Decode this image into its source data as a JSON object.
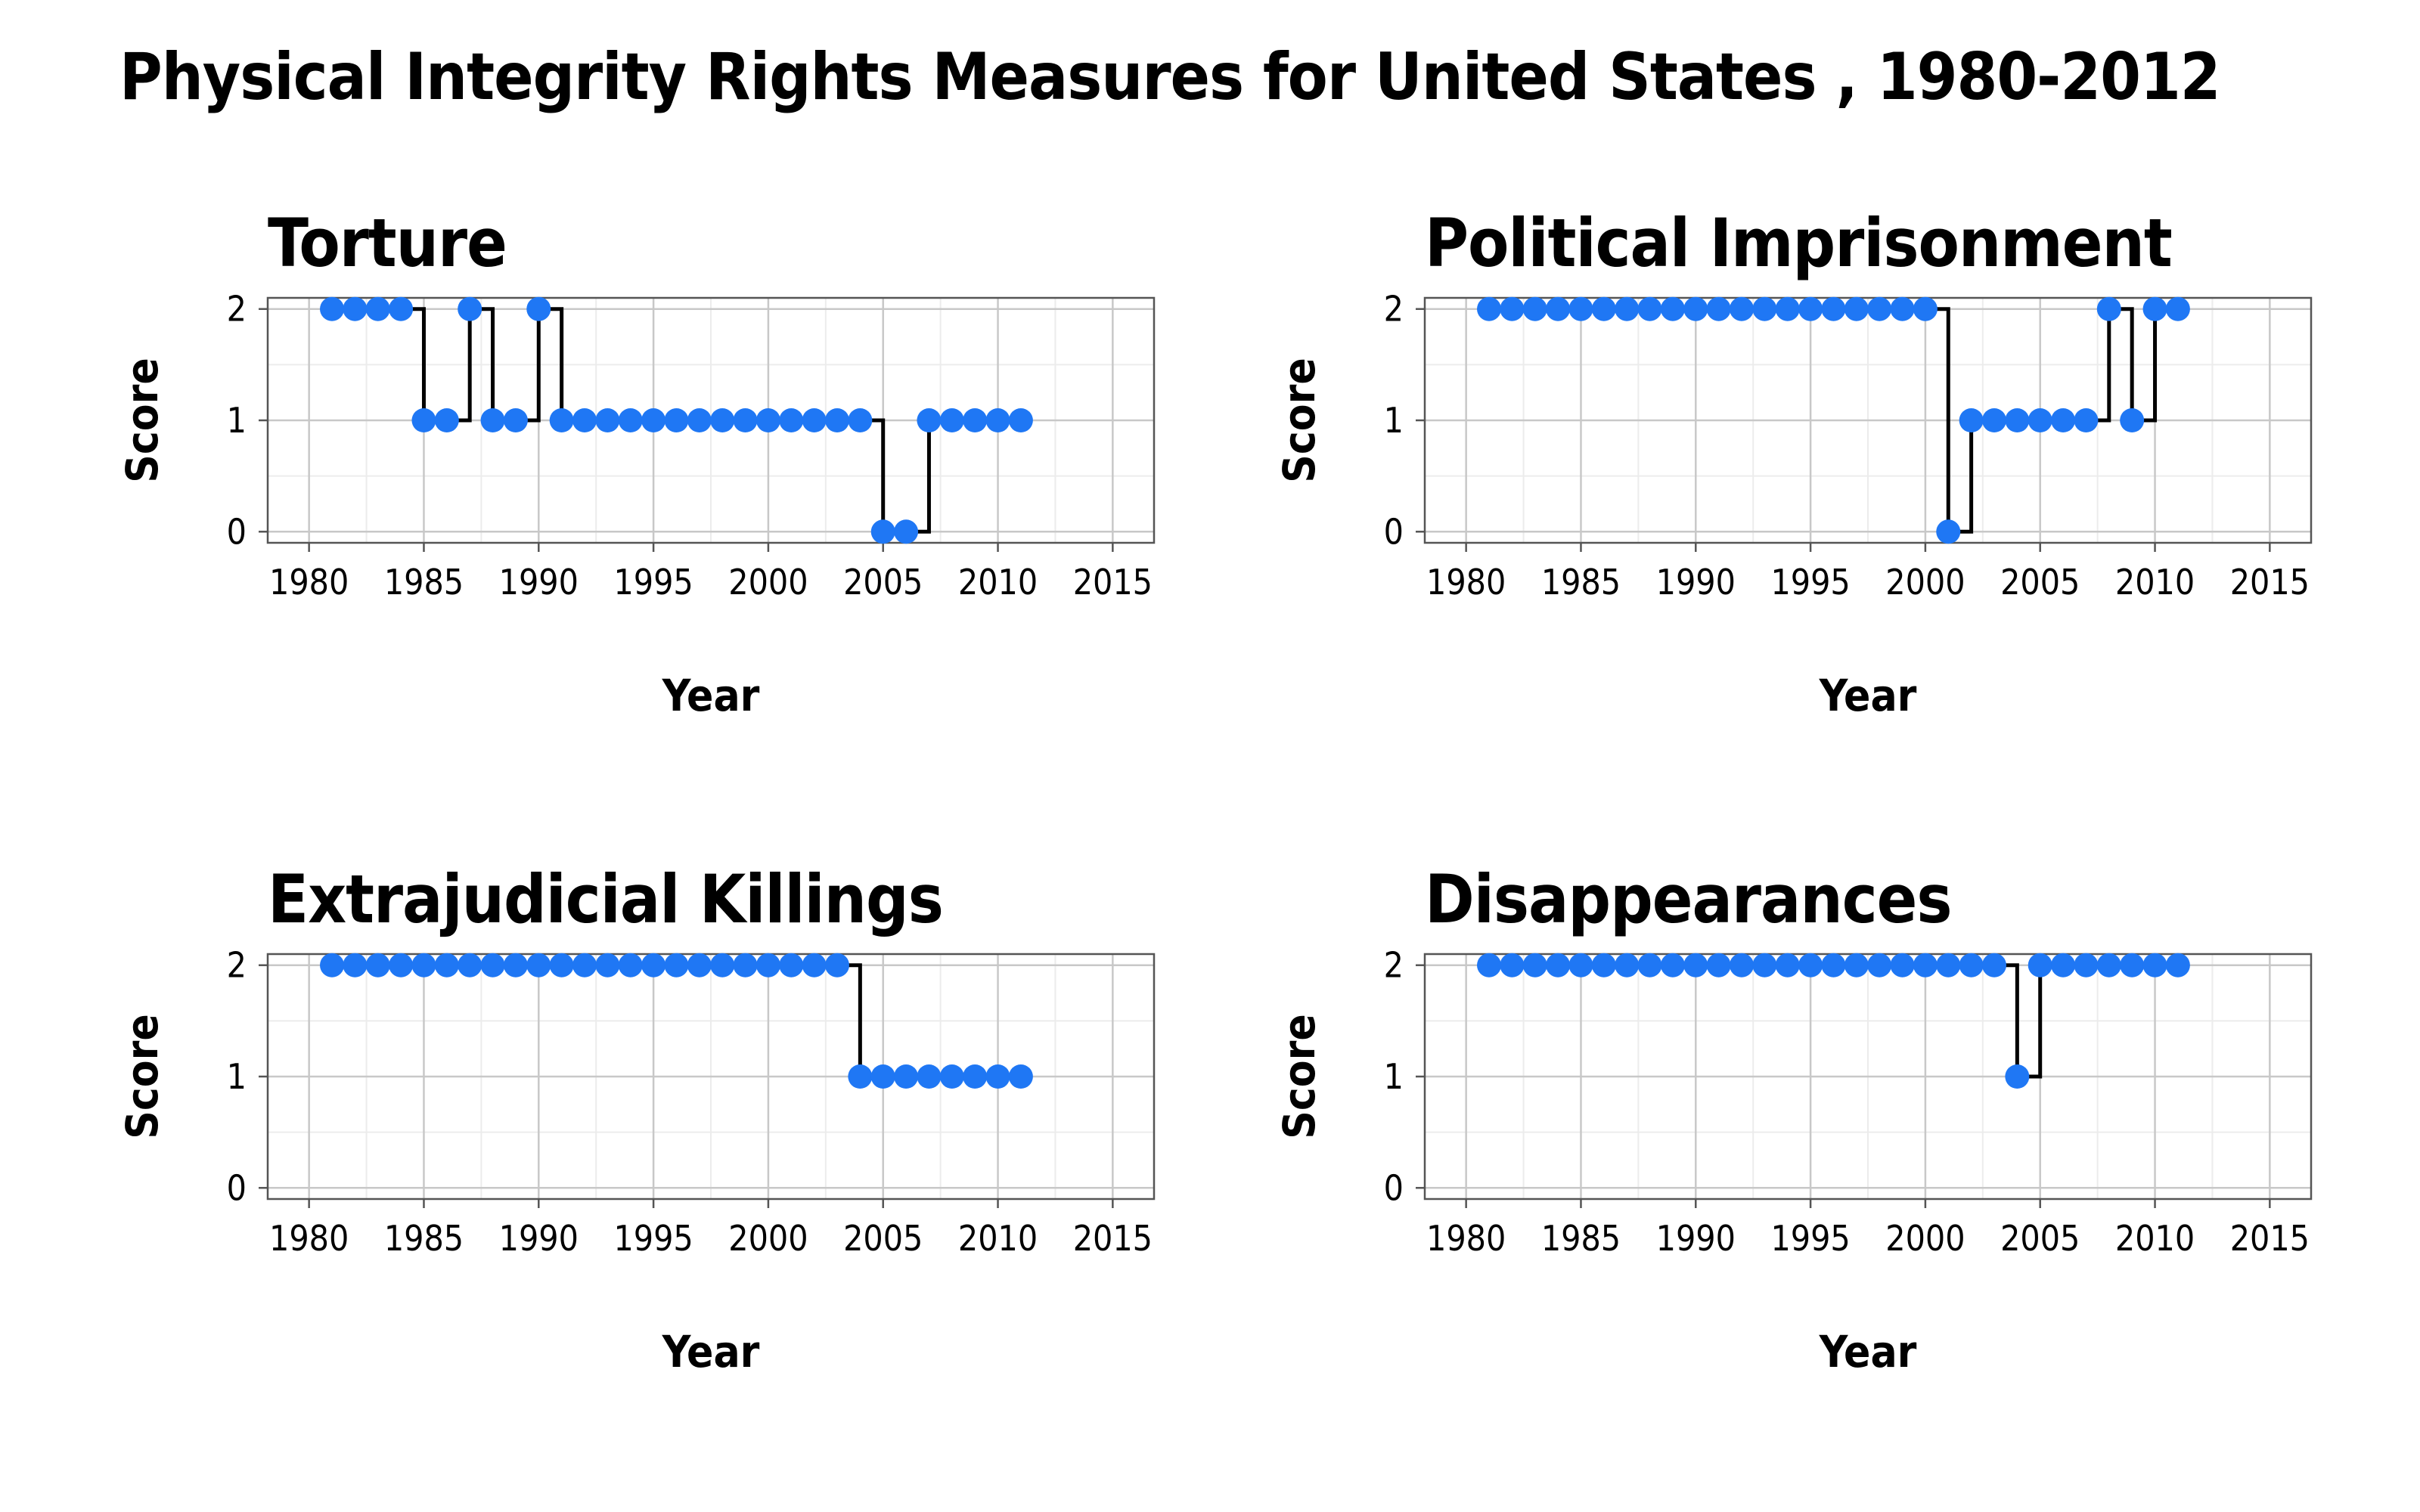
{
  "page": {
    "title": "Physical Integrity Rights Measures for United States , 1980-2012"
  },
  "colors": {
    "point": "#1f77f4",
    "step_line": "#000000",
    "grid_major": "#c8c8c8",
    "grid_minor": "#ececec",
    "panel_border": "#555555"
  },
  "chart_data": [
    {
      "type": "line",
      "title": "Torture",
      "xlabel": "Year",
      "ylabel": "Score",
      "x_ticks": [
        1980,
        1985,
        1990,
        1995,
        2000,
        2005,
        2010,
        2015
      ],
      "y_ticks": [
        0,
        1,
        2
      ],
      "xlim": [
        1978.2,
        2016.8
      ],
      "ylim": [
        -0.1,
        2.1
      ],
      "grid": true,
      "x": [
        1981,
        1982,
        1983,
        1984,
        1985,
        1986,
        1987,
        1988,
        1989,
        1990,
        1991,
        1992,
        1993,
        1994,
        1995,
        1996,
        1997,
        1998,
        1999,
        2000,
        2001,
        2002,
        2003,
        2004,
        2005,
        2006,
        2007,
        2008,
        2009,
        2010,
        2011
      ],
      "values": [
        2,
        2,
        2,
        2,
        1,
        1,
        2,
        1,
        1,
        2,
        1,
        1,
        1,
        1,
        1,
        1,
        1,
        1,
        1,
        1,
        1,
        1,
        1,
        1,
        0,
        0,
        1,
        1,
        1,
        1,
        1
      ]
    },
    {
      "type": "line",
      "title": "Political Imprisonment",
      "xlabel": "Year",
      "ylabel": "Score",
      "x_ticks": [
        1980,
        1985,
        1990,
        1995,
        2000,
        2005,
        2010,
        2015
      ],
      "y_ticks": [
        0,
        1,
        2
      ],
      "xlim": [
        1978.2,
        2016.8
      ],
      "ylim": [
        -0.1,
        2.1
      ],
      "grid": true,
      "x": [
        1981,
        1982,
        1983,
        1984,
        1985,
        1986,
        1987,
        1988,
        1989,
        1990,
        1991,
        1992,
        1993,
        1994,
        1995,
        1996,
        1997,
        1998,
        1999,
        2000,
        2001,
        2002,
        2003,
        2004,
        2005,
        2006,
        2007,
        2008,
        2009,
        2010,
        2011
      ],
      "values": [
        2,
        2,
        2,
        2,
        2,
        2,
        2,
        2,
        2,
        2,
        2,
        2,
        2,
        2,
        2,
        2,
        2,
        2,
        2,
        2,
        0,
        1,
        1,
        1,
        1,
        1,
        1,
        2,
        1,
        2,
        2
      ]
    },
    {
      "type": "line",
      "title": "Extrajudicial Killings",
      "xlabel": "Year",
      "ylabel": "Score",
      "x_ticks": [
        1980,
        1985,
        1990,
        1995,
        2000,
        2005,
        2010,
        2015
      ],
      "y_ticks": [
        0,
        1,
        2
      ],
      "xlim": [
        1978.2,
        2016.8
      ],
      "ylim": [
        -0.1,
        2.1
      ],
      "grid": true,
      "x": [
        1981,
        1982,
        1983,
        1984,
        1985,
        1986,
        1987,
        1988,
        1989,
        1990,
        1991,
        1992,
        1993,
        1994,
        1995,
        1996,
        1997,
        1998,
        1999,
        2000,
        2001,
        2002,
        2003,
        2004,
        2005,
        2006,
        2007,
        2008,
        2009,
        2010,
        2011
      ],
      "values": [
        2,
        2,
        2,
        2,
        2,
        2,
        2,
        2,
        2,
        2,
        2,
        2,
        2,
        2,
        2,
        2,
        2,
        2,
        2,
        2,
        2,
        2,
        2,
        1,
        1,
        1,
        1,
        1,
        1,
        1,
        1
      ]
    },
    {
      "type": "line",
      "title": "Disappearances",
      "xlabel": "Year",
      "ylabel": "Score",
      "x_ticks": [
        1980,
        1985,
        1990,
        1995,
        2000,
        2005,
        2010,
        2015
      ],
      "y_ticks": [
        0,
        1,
        2
      ],
      "xlim": [
        1978.2,
        2016.8
      ],
      "ylim": [
        -0.1,
        2.1
      ],
      "grid": true,
      "x": [
        1981,
        1982,
        1983,
        1984,
        1985,
        1986,
        1987,
        1988,
        1989,
        1990,
        1991,
        1992,
        1993,
        1994,
        1995,
        1996,
        1997,
        1998,
        1999,
        2000,
        2001,
        2002,
        2003,
        2004,
        2005,
        2006,
        2007,
        2008,
        2009,
        2010,
        2011
      ],
      "values": [
        2,
        2,
        2,
        2,
        2,
        2,
        2,
        2,
        2,
        2,
        2,
        2,
        2,
        2,
        2,
        2,
        2,
        2,
        2,
        2,
        2,
        2,
        2,
        1,
        2,
        2,
        2,
        2,
        2,
        2,
        2
      ]
    }
  ]
}
